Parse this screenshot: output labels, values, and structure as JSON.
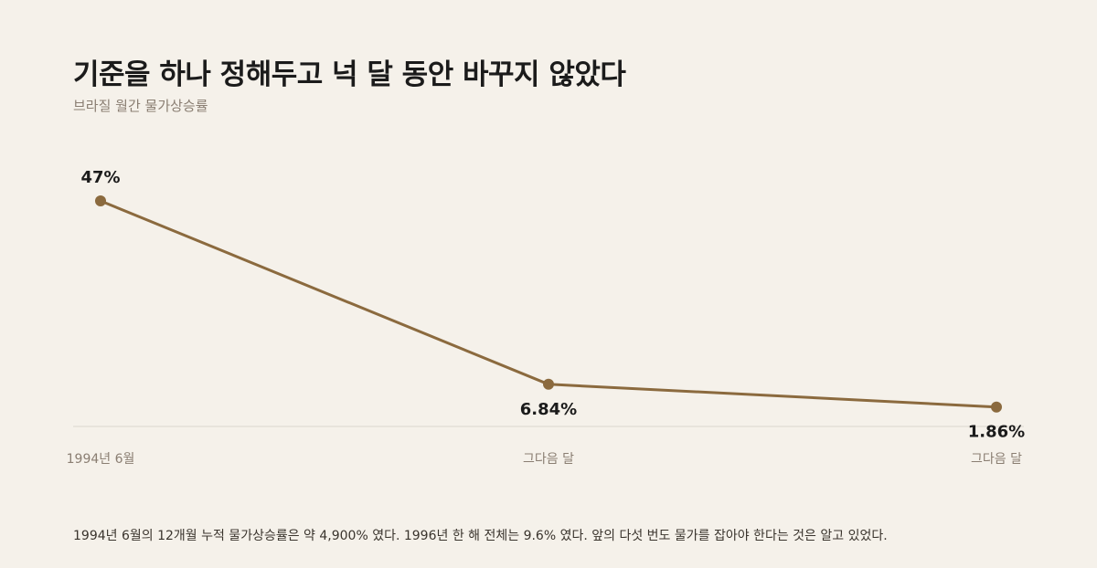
{
  "title": "기준을 하나 정해두고 넉 달 동안 바꾸지 않았다",
  "subtitle": "브라질 월간 물가상승률",
  "footnote": "1994년 6월의 12개월 누적 물가상승률은 약 4,900% 였다. 1996년 한 해 전체는 9.6% 였다. 앞의 다섯 번도 물가를 잡아야 한다는 것은 알고 있었다.",
  "colors": {
    "background": "#f5f1ea",
    "line": "#8b6a3e",
    "axis": "#dcd6cd",
    "label": "#1b1b1b",
    "tick": "#8a7e72"
  },
  "chart_data": {
    "type": "line",
    "title": "기준을 하나 정해두고 넉 달 동안 바꾸지 않았다",
    "subtitle": "브라질 월간 물가상승률",
    "categories": [
      "1994년 6월",
      "그다음 달",
      "그다음 달"
    ],
    "series": [
      {
        "values": [
          47,
          6.84,
          1.86
        ],
        "labels": [
          "47%",
          "6.84%",
          "1.86%"
        ]
      }
    ],
    "ylim": [
      -3,
      57
    ],
    "grid": false,
    "legend": "none"
  }
}
